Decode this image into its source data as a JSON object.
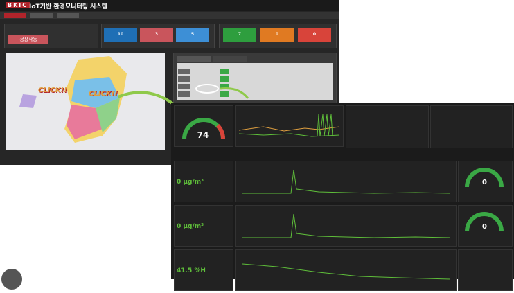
{
  "header": {
    "logo": "BKIC",
    "title": "IoT기반 환경모니터링 시스템"
  },
  "status": {
    "label": "정상작동"
  },
  "tiles": [
    {
      "value": "10",
      "color": "#1f6fb5"
    },
    {
      "value": "3",
      "color": "#c9555c"
    },
    {
      "value": "5",
      "color": "#3d8fd6"
    },
    {
      "value": "7",
      "color": "#2e9e3e"
    },
    {
      "value": "0",
      "color": "#e07a22"
    },
    {
      "value": "0",
      "color": "#d8443a"
    }
  ],
  "callouts": [
    "CLICK!!",
    "CLICK!!"
  ],
  "main_gauge": {
    "value": "74"
  },
  "readings": [
    "0 μg/m³",
    "0 μg/m³",
    "41.5 %H"
  ],
  "side_gauges": [
    "0",
    "0"
  ]
}
